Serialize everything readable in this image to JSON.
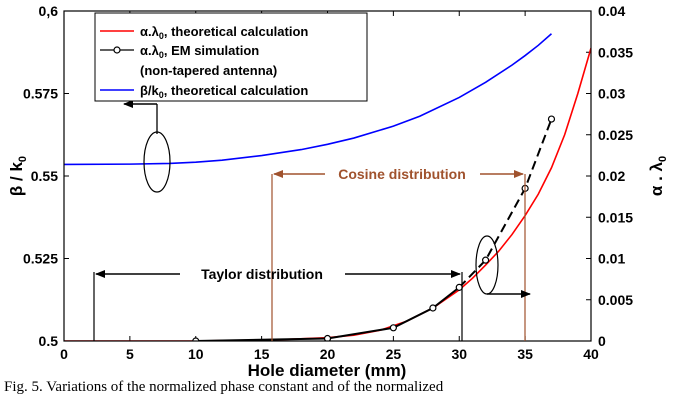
{
  "chart_data": {
    "type": "line",
    "xlabel": "Hole diameter (mm)",
    "ylabel_left": "β / k",
    "ylabel_left_sub": "0",
    "ylabel_right": "α . λ",
    "ylabel_right_sub": "0",
    "xlim": [
      0,
      40
    ],
    "ylim_left": [
      0.5,
      0.6
    ],
    "ylim_right": [
      0,
      0.04
    ],
    "x_ticks": [
      "0",
      "5",
      "10",
      "15",
      "20",
      "25",
      "30",
      "35",
      "40"
    ],
    "y_left_ticks": [
      "0.5",
      "0.525",
      "0.55",
      "0.575",
      "0,6"
    ],
    "y_right_ticks": [
      "0",
      "0.005",
      "0.01",
      "0.015",
      "0.02",
      "0.025",
      "0.03",
      "0.035",
      "0.04"
    ],
    "legend_position": "top-left",
    "series": [
      {
        "name": "α.λ, theoretical calculation",
        "name_parts": [
          "α.λ",
          "0",
          ", theoretical calculation"
        ],
        "axis": "right",
        "color": "#ff0000",
        "x": [
          0,
          5,
          10,
          14,
          17,
          20,
          22,
          24,
          26,
          28,
          30,
          31,
          32,
          33,
          34,
          35,
          36,
          37,
          38,
          39,
          40
        ],
        "y": [
          0,
          0,
          0,
          0.0001,
          0.0002,
          0.0004,
          0.0007,
          0.0013,
          0.0024,
          0.004,
          0.0062,
          0.0076,
          0.0092,
          0.0109,
          0.0129,
          0.0152,
          0.0178,
          0.021,
          0.025,
          0.03,
          0.0355
        ]
      },
      {
        "name": "α.λ, EM simulation (non-tapered antenna)",
        "name_parts": [
          "α.λ",
          "0",
          ", EM simulation",
          "(non-tapered antenna)"
        ],
        "axis": "right",
        "color": "#000000",
        "markers": "circle",
        "dashed_from_x": 30,
        "x": [
          10,
          20,
          25,
          28,
          30,
          32,
          35,
          37
        ],
        "y": [
          0,
          0.0003,
          0.0016,
          0.004,
          0.0065,
          0.0098,
          0.0185,
          0.0269
        ]
      },
      {
        "name": "β/k, theoretical calculation",
        "name_parts": [
          "β/k",
          "0",
          ", theoretical calculation"
        ],
        "axis": "left",
        "color": "#0000ff",
        "x": [
          0,
          5,
          8,
          10,
          12,
          15,
          18,
          20,
          22,
          25,
          27,
          30,
          32,
          34,
          35,
          36,
          37
        ],
        "y": [
          0.5535,
          0.5536,
          0.5538,
          0.5542,
          0.5548,
          0.5562,
          0.558,
          0.5596,
          0.5615,
          0.5651,
          0.5681,
          0.5738,
          0.5784,
          0.5836,
          0.5865,
          0.5896,
          0.5931
        ]
      }
    ],
    "annotations": {
      "cosine": "Cosine distribution",
      "taylor": "Taylor distribution"
    },
    "colors": {
      "annotation_brown": "#a0522d",
      "axis": "#000000"
    }
  },
  "caption": "Fig. 5.  Variations of the normalized phase constant and of the normalized"
}
